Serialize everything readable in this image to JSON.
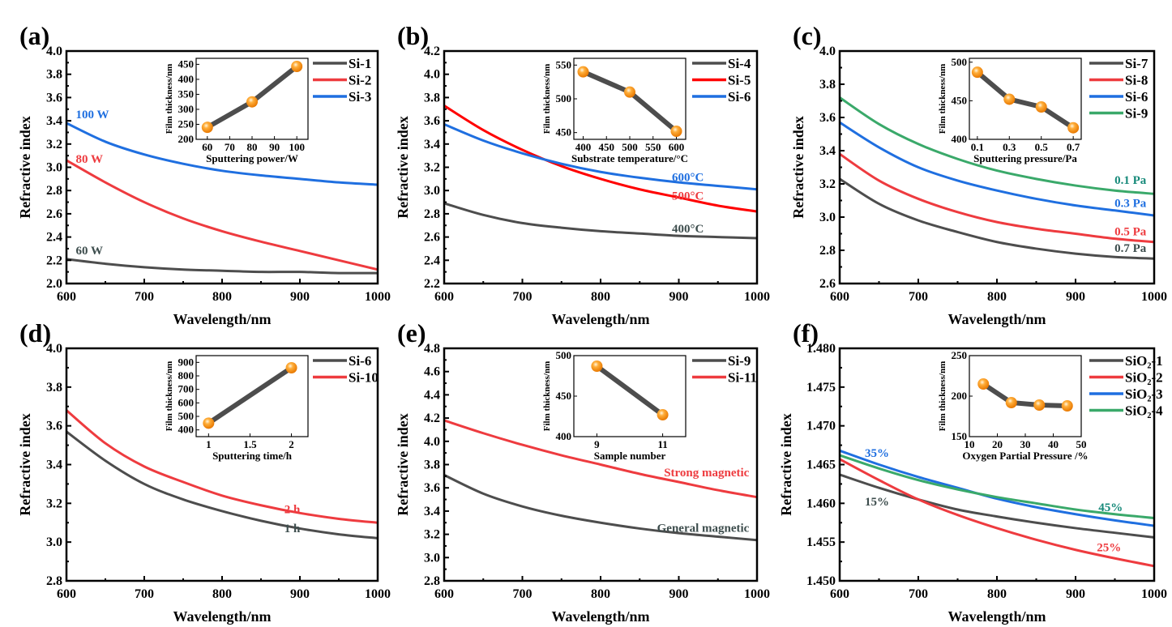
{
  "colors": {
    "gray": "#4d4d4d",
    "red": "#ee3b3f",
    "pure_red": "#ff0000",
    "blue": "#1f6fe0",
    "green": "#3aa96a",
    "teal": "#178a7a",
    "slate": "#3d4d4d",
    "orange": "#ff9a1a"
  },
  "chart_data": [
    {
      "type": "line",
      "panel_label": "(a)",
      "xlabel": "Wavelength/nm",
      "ylabel": "Refractive index",
      "xlim": [
        600,
        1000
      ],
      "xticks": [
        600,
        700,
        800,
        900,
        1000
      ],
      "ylim": [
        2.0,
        4.0
      ],
      "yticks": [
        2.0,
        2.2,
        2.4,
        2.6,
        2.8,
        3.0,
        3.2,
        3.4,
        3.6,
        3.8,
        4.0
      ],
      "ytick_decimals": 1,
      "x": [
        600,
        650,
        700,
        750,
        800,
        850,
        900,
        950,
        1000
      ],
      "series": [
        {
          "name": "Si-1",
          "color": "gray",
          "values": [
            2.21,
            2.17,
            2.14,
            2.12,
            2.11,
            2.1,
            2.1,
            2.09,
            2.09
          ]
        },
        {
          "name": "Si-2",
          "color": "red",
          "values": [
            3.06,
            2.87,
            2.7,
            2.56,
            2.45,
            2.36,
            2.28,
            2.2,
            2.12
          ]
        },
        {
          "name": "Si-3",
          "color": "blue",
          "values": [
            3.38,
            3.22,
            3.11,
            3.03,
            2.97,
            2.93,
            2.9,
            2.87,
            2.85
          ]
        }
      ],
      "annotations": [
        {
          "text": "100 W",
          "color": "blue",
          "x": 612,
          "y": 3.42
        },
        {
          "text": "80 W",
          "color": "red",
          "x": 612,
          "y": 3.04
        },
        {
          "text": "60 W",
          "color": "slate",
          "x": 612,
          "y": 2.25
        }
      ],
      "inset": {
        "type": "line+markers",
        "xlabel": "Sputtering power/W",
        "ylabel": "Film thickness/nm",
        "xlim": [
          55,
          105
        ],
        "xticks": [
          60,
          70,
          80,
          90,
          100
        ],
        "ylim": [
          200,
          470
        ],
        "yticks": [
          200,
          250,
          300,
          350,
          400,
          450
        ],
        "x": [
          60,
          80,
          100
        ],
        "y": [
          240,
          325,
          443
        ]
      }
    },
    {
      "type": "line",
      "panel_label": "(b)",
      "xlabel": "Wavelength/nm",
      "ylabel": "Refractive index",
      "xlim": [
        600,
        1000
      ],
      "xticks": [
        600,
        700,
        800,
        900,
        1000
      ],
      "ylim": [
        2.2,
        4.2
      ],
      "yticks": [
        2.2,
        2.4,
        2.6,
        2.8,
        3.0,
        3.2,
        3.4,
        3.6,
        3.8,
        4.0,
        4.2
      ],
      "ytick_decimals": 1,
      "x": [
        600,
        650,
        700,
        750,
        800,
        850,
        900,
        950,
        1000
      ],
      "series": [
        {
          "name": "Si-4",
          "color": "gray",
          "values": [
            2.89,
            2.79,
            2.72,
            2.68,
            2.65,
            2.63,
            2.61,
            2.6,
            2.59
          ]
        },
        {
          "name": "Si-5",
          "color": "pure_red",
          "values": [
            3.73,
            3.52,
            3.35,
            3.21,
            3.1,
            3.01,
            2.94,
            2.87,
            2.82
          ]
        },
        {
          "name": "Si-6",
          "color": "blue",
          "values": [
            3.57,
            3.43,
            3.32,
            3.23,
            3.16,
            3.11,
            3.07,
            3.04,
            3.01
          ]
        }
      ],
      "annotations": [
        {
          "text": "600°C",
          "color": "blue",
          "x": 932,
          "y": 3.08
        },
        {
          "text": "500°C",
          "color": "red",
          "x": 932,
          "y": 2.92
        },
        {
          "text": "400°C",
          "color": "slate",
          "x": 932,
          "y": 2.64
        }
      ],
      "inset": {
        "type": "line+markers",
        "xlabel": "Substrate temperature/°C",
        "ylabel": "Film thickness/nm",
        "xlim": [
          380,
          620
        ],
        "xticks": [
          400,
          450,
          500,
          550,
          600
        ],
        "ylim": [
          440,
          560
        ],
        "yticks": [
          450,
          500,
          550
        ],
        "x": [
          400,
          500,
          600
        ],
        "y": [
          540,
          510,
          452
        ]
      }
    },
    {
      "type": "line",
      "panel_label": "(c)",
      "xlabel": "Wavelength/nm",
      "ylabel": "Refractive index",
      "xlim": [
        600,
        1000
      ],
      "xticks": [
        600,
        700,
        800,
        900,
        1000
      ],
      "ylim": [
        2.6,
        4.0
      ],
      "yticks": [
        2.6,
        2.8,
        3.0,
        3.2,
        3.4,
        3.6,
        3.8,
        4.0
      ],
      "ytick_decimals": 1,
      "x": [
        600,
        650,
        700,
        750,
        800,
        850,
        900,
        950,
        1000
      ],
      "series": [
        {
          "name": "Si-7",
          "color": "gray",
          "values": [
            3.23,
            3.08,
            2.98,
            2.91,
            2.85,
            2.81,
            2.78,
            2.76,
            2.75
          ]
        },
        {
          "name": "Si-8",
          "color": "red",
          "values": [
            3.38,
            3.22,
            3.11,
            3.03,
            2.97,
            2.93,
            2.9,
            2.87,
            2.85
          ]
        },
        {
          "name": "Si-6",
          "color": "blue",
          "values": [
            3.57,
            3.42,
            3.3,
            3.22,
            3.16,
            3.11,
            3.07,
            3.04,
            3.01
          ]
        },
        {
          "name": "Si-9",
          "color": "green",
          "values": [
            3.72,
            3.56,
            3.44,
            3.35,
            3.28,
            3.23,
            3.19,
            3.16,
            3.14
          ]
        }
      ],
      "annotations": [
        {
          "text": "0.1 Pa",
          "color": "teal",
          "x": 990,
          "y": 3.2
        },
        {
          "text": "0.3 Pa",
          "color": "blue",
          "x": 990,
          "y": 3.06
        },
        {
          "text": "0.5 Pa",
          "color": "red",
          "x": 990,
          "y": 2.89
        },
        {
          "text": "0.7 Pa",
          "color": "slate",
          "x": 990,
          "y": 2.79
        }
      ],
      "inset": {
        "type": "line+markers",
        "xlabel": "Sputtering pressure/Pa",
        "ylabel": "Film thickness/nm",
        "xlim": [
          0.05,
          0.75
        ],
        "xticks": [
          0.1,
          0.3,
          0.5,
          0.7
        ],
        "ylim": [
          400,
          505
        ],
        "yticks": [
          400,
          450,
          500
        ],
        "x": [
          0.1,
          0.3,
          0.5,
          0.7
        ],
        "y": [
          487,
          452,
          442,
          415
        ]
      }
    },
    {
      "type": "line",
      "panel_label": "(d)",
      "xlabel": "Wavelength/nm",
      "ylabel": "Refractive index",
      "xlim": [
        600,
        1000
      ],
      "xticks": [
        600,
        700,
        800,
        900,
        1000
      ],
      "ylim": [
        2.8,
        4.0
      ],
      "yticks": [
        2.8,
        3.0,
        3.2,
        3.4,
        3.6,
        3.8,
        4.0
      ],
      "ytick_decimals": 1,
      "x": [
        600,
        650,
        700,
        750,
        800,
        850,
        900,
        950,
        1000
      ],
      "series": [
        {
          "name": "Si-6",
          "color": "gray",
          "values": [
            3.57,
            3.42,
            3.3,
            3.22,
            3.16,
            3.11,
            3.07,
            3.04,
            3.02
          ]
        },
        {
          "name": "Si-10",
          "color": "red",
          "values": [
            3.68,
            3.51,
            3.39,
            3.31,
            3.24,
            3.19,
            3.15,
            3.12,
            3.1
          ]
        }
      ],
      "annotations": [
        {
          "text": "2 h",
          "color": "red",
          "x": 880,
          "y": 3.15
        },
        {
          "text": "1 h",
          "color": "slate",
          "x": 880,
          "y": 3.05
        }
      ],
      "inset": {
        "type": "line+markers",
        "xlabel": "Sputtering time/h",
        "ylabel": "Film thickness/nm",
        "xlim": [
          0.85,
          2.2
        ],
        "xticks": [
          1.0,
          1.5,
          2.0
        ],
        "ylim": [
          350,
          950
        ],
        "yticks": [
          400,
          500,
          600,
          700,
          800,
          900
        ],
        "x": [
          1.0,
          2.0
        ],
        "y": [
          450,
          860
        ]
      }
    },
    {
      "type": "line",
      "panel_label": "(e)",
      "xlabel": "Wavelength/nm",
      "ylabel": "Refractive index",
      "xlim": [
        600,
        1000
      ],
      "xticks": [
        600,
        700,
        800,
        900,
        1000
      ],
      "ylim": [
        2.8,
        4.8
      ],
      "yticks": [
        2.8,
        3.0,
        3.2,
        3.4,
        3.6,
        3.8,
        4.0,
        4.2,
        4.4,
        4.6,
        4.8
      ],
      "ytick_decimals": 1,
      "x": [
        600,
        650,
        700,
        750,
        800,
        850,
        900,
        950,
        1000
      ],
      "series": [
        {
          "name": "Si-9",
          "color": "gray",
          "values": [
            3.71,
            3.55,
            3.44,
            3.36,
            3.3,
            3.25,
            3.21,
            3.18,
            3.15
          ]
        },
        {
          "name": "Si-11",
          "color": "red",
          "values": [
            4.18,
            4.07,
            3.97,
            3.88,
            3.8,
            3.72,
            3.65,
            3.58,
            3.52
          ]
        }
      ],
      "annotations": [
        {
          "text": "Strong magnetic",
          "color": "red",
          "x": 990,
          "y": 3.7
        },
        {
          "text": "General magnetic",
          "color": "slate",
          "x": 990,
          "y": 3.22
        }
      ],
      "inset": {
        "type": "line+markers",
        "xlabel": "Sample number",
        "ylabel": "Film thickness/nm",
        "xlim": [
          8.3,
          11.7
        ],
        "xticks": [
          9,
          11
        ],
        "ylim": [
          400,
          500
        ],
        "yticks": [
          400,
          450,
          500
        ],
        "x": [
          9,
          11
        ],
        "y": [
          487,
          427
        ]
      }
    },
    {
      "type": "line",
      "panel_label": "(f)",
      "xlabel": "Wavelength/nm",
      "ylabel": "Refractive index",
      "xlim": [
        600,
        1000
      ],
      "xticks": [
        600,
        700,
        800,
        900,
        1000
      ],
      "ylim": [
        1.45,
        1.48
      ],
      "yticks": [
        1.45,
        1.455,
        1.46,
        1.465,
        1.47,
        1.475,
        1.48
      ],
      "ytick_decimals": 3,
      "x": [
        600,
        650,
        700,
        750,
        800,
        850,
        900,
        950,
        1000
      ],
      "series": [
        {
          "name": "SiO₂-1",
          "color": "gray",
          "values": [
            1.4637,
            1.462,
            1.4605,
            1.4592,
            1.4583,
            1.4575,
            1.4568,
            1.4562,
            1.4556
          ]
        },
        {
          "name": "SiO₂-2",
          "color": "red",
          "values": [
            1.4657,
            1.463,
            1.4605,
            1.4585,
            1.4568,
            1.4553,
            1.454,
            1.4529,
            1.4519
          ]
        },
        {
          "name": "SiO₂-3",
          "color": "blue",
          "values": [
            1.4668,
            1.465,
            1.4634,
            1.462,
            1.4606,
            1.4595,
            1.4586,
            1.4578,
            1.4571
          ]
        },
        {
          "name": "SiO₂-4",
          "color": "green",
          "values": [
            1.4662,
            1.4645,
            1.463,
            1.4618,
            1.4608,
            1.46,
            1.4592,
            1.4586,
            1.4581
          ]
        }
      ],
      "annotations": [
        {
          "text": "35%",
          "color": "blue",
          "x": 632,
          "y": 1.466
        },
        {
          "text": "15%",
          "color": "slate",
          "x": 632,
          "y": 1.4597
        },
        {
          "text": "45%",
          "color": "teal",
          "x": 960,
          "y": 1.459
        },
        {
          "text": "25%",
          "color": "red",
          "x": 958,
          "y": 1.4538
        }
      ],
      "inset": {
        "type": "line+markers",
        "xlabel": "Oxygen Partial Pressure /%",
        "ylabel": "Film thickness/nm",
        "xlim": [
          10,
          50
        ],
        "xticks": [
          10,
          20,
          30,
          40,
          50
        ],
        "ylim": [
          150,
          250
        ],
        "yticks": [
          150,
          200,
          250
        ],
        "x": [
          15,
          25,
          35,
          45
        ],
        "y": [
          215,
          192,
          189,
          188
        ]
      }
    }
  ]
}
